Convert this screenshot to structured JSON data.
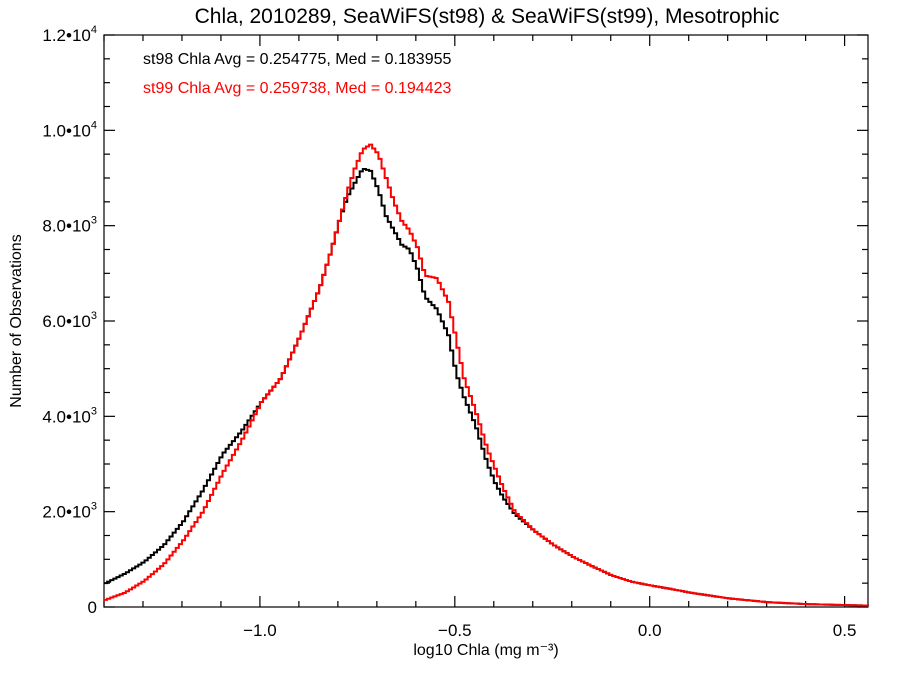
{
  "chart_data": {
    "type": "line",
    "title": "Chla, 2010289, SeaWiFS(st98) & SeaWiFS(st99), Mesotrophic",
    "xlabel": "log10 Chla (mg m⁻³)",
    "ylabel": "Number of Observations",
    "xlim": [
      -1.4,
      0.56
    ],
    "ylim": [
      0,
      12000
    ],
    "grid": false,
    "x_ticks": [
      {
        "value": -1.0,
        "label": "−1.0"
      },
      {
        "value": -0.5,
        "label": "−0.5"
      },
      {
        "value": 0.0,
        "label": "0.0"
      },
      {
        "value": 0.5,
        "label": "0.5"
      }
    ],
    "y_ticks": [
      {
        "value": 0,
        "label": "0"
      },
      {
        "value": 2000,
        "label": "2.0•103"
      },
      {
        "value": 4000,
        "label": "4.0•103"
      },
      {
        "value": 6000,
        "label": "6.0•103"
      },
      {
        "value": 8000,
        "label": "8.0•103"
      },
      {
        "value": 10000,
        "label": "1.0•104"
      },
      {
        "value": 12000,
        "label": "1.2•104"
      }
    ],
    "annotations": [
      {
        "text": "st98 Chla Avg = 0.254775, Med = 0.183955",
        "color": "#000000"
      },
      {
        "text": "st99 Chla Avg = 0.259738, Med = 0.194423",
        "color": "#ff0000"
      }
    ],
    "series": [
      {
        "color": "#000000",
        "x": [
          -1.4,
          -1.35,
          -1.3,
          -1.25,
          -1.2,
          -1.15,
          -1.1,
          -1.05,
          -1.0,
          -0.95,
          -0.9,
          -0.85,
          -0.82,
          -0.8,
          -0.78,
          -0.76,
          -0.74,
          -0.72,
          -0.7,
          -0.68,
          -0.66,
          -0.64,
          -0.62,
          -0.6,
          -0.58,
          -0.55,
          -0.52,
          -0.5,
          -0.48,
          -0.45,
          -0.42,
          -0.4,
          -0.38,
          -0.35,
          -0.3,
          -0.25,
          -0.2,
          -0.15,
          -0.1,
          -0.05,
          0.0,
          0.05,
          0.1,
          0.2,
          0.3,
          0.4,
          0.5,
          0.56
        ],
        "values": [
          500,
          700,
          950,
          1300,
          1800,
          2450,
          3200,
          3700,
          4300,
          4800,
          5700,
          6700,
          7500,
          8100,
          8600,
          8900,
          9200,
          9150,
          8750,
          8200,
          7900,
          7600,
          7500,
          7100,
          6500,
          6250,
          5700,
          4900,
          4400,
          3800,
          3000,
          2600,
          2300,
          1950,
          1600,
          1300,
          1050,
          850,
          660,
          530,
          450,
          380,
          300,
          180,
          100,
          60,
          40,
          30
        ]
      },
      {
        "color": "#ff0000",
        "x": [
          -1.4,
          -1.35,
          -1.3,
          -1.25,
          -1.2,
          -1.15,
          -1.1,
          -1.05,
          -1.0,
          -0.95,
          -0.9,
          -0.85,
          -0.82,
          -0.8,
          -0.78,
          -0.76,
          -0.74,
          -0.72,
          -0.7,
          -0.68,
          -0.66,
          -0.64,
          -0.62,
          -0.6,
          -0.58,
          -0.55,
          -0.52,
          -0.5,
          -0.48,
          -0.45,
          -0.42,
          -0.4,
          -0.38,
          -0.35,
          -0.3,
          -0.25,
          -0.2,
          -0.15,
          -0.1,
          -0.05,
          0.0,
          0.05,
          0.1,
          0.2,
          0.3,
          0.4,
          0.5,
          0.56
        ],
        "values": [
          150,
          300,
          550,
          900,
          1400,
          2000,
          2800,
          3500,
          4300,
          4800,
          5700,
          6700,
          7500,
          8100,
          8700,
          9200,
          9600,
          9700,
          9500,
          9000,
          8500,
          8100,
          7900,
          7550,
          6950,
          6900,
          6400,
          5600,
          4800,
          4100,
          3300,
          2900,
          2500,
          2000,
          1600,
          1300,
          1050,
          850,
          660,
          530,
          450,
          380,
          300,
          180,
          100,
          60,
          40,
          30
        ]
      }
    ]
  }
}
